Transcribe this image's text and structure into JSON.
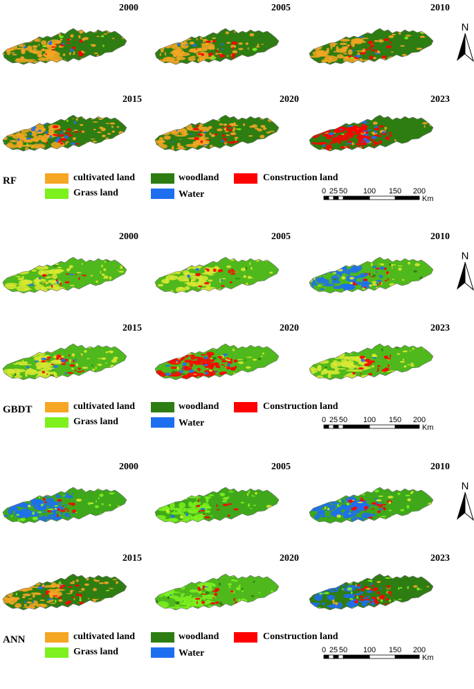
{
  "panels": [
    {
      "model": "RF",
      "maps": [
        {
          "year": "2000",
          "scheme": "rf2000"
        },
        {
          "year": "2005",
          "scheme": "rf2005"
        },
        {
          "year": "2010",
          "scheme": "rf2010"
        },
        {
          "year": "2015",
          "scheme": "rf2015"
        },
        {
          "year": "2020",
          "scheme": "rf2020"
        },
        {
          "year": "2023",
          "scheme": "rf2023"
        }
      ]
    },
    {
      "model": "GBDT",
      "maps": [
        {
          "year": "2000",
          "scheme": "gb2000"
        },
        {
          "year": "2005",
          "scheme": "gb2005"
        },
        {
          "year": "2010",
          "scheme": "gb2010"
        },
        {
          "year": "2015",
          "scheme": "gb2015"
        },
        {
          "year": "2020",
          "scheme": "gb2020"
        },
        {
          "year": "2023",
          "scheme": "gb2023"
        }
      ]
    },
    {
      "model": "ANN",
      "maps": [
        {
          "year": "2000",
          "scheme": "an2000"
        },
        {
          "year": "2005",
          "scheme": "an2005"
        },
        {
          "year": "2010",
          "scheme": "an2010"
        },
        {
          "year": "2015",
          "scheme": "an2015"
        },
        {
          "year": "2020",
          "scheme": "an2020"
        },
        {
          "year": "2023",
          "scheme": "an2023"
        }
      ]
    }
  ],
  "legend": [
    {
      "label": "cultivated land",
      "color": "#f5a623"
    },
    {
      "label": "woodland",
      "color": "#2e7d12"
    },
    {
      "label": "Construction land",
      "color": "#ff0000"
    },
    {
      "label": "Grass land",
      "color": "#7df01e"
    },
    {
      "label": "Water",
      "color": "#1e6ff0"
    }
  ],
  "north_label": "N",
  "scale": {
    "ticks": [
      "0",
      "25",
      "50",
      "100",
      "150",
      "200"
    ],
    "unit": "Km"
  }
}
